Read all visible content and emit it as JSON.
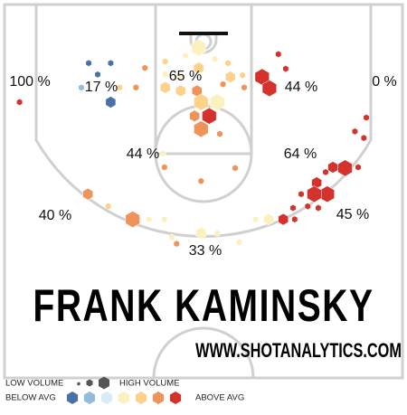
{
  "chart_data": {
    "type": "hexbin",
    "title": "FRANK KAMINSKY",
    "subtitle": "WWW.SHOTANALYTICS.COM",
    "xlim": [
      -25,
      25
    ],
    "ylim": [
      0,
      47
    ],
    "colors": [
      "#4a72a8",
      "#93bcdc",
      "#d9ecf3",
      "#fbf1bf",
      "#fdd28b",
      "#ef935a",
      "#d4322c"
    ],
    "hexes": {
      "x": [
        -22.6,
        -14.1,
        -13.0,
        -11.4,
        -11.4,
        -15.0,
        -10.3,
        -8.3,
        -7.2,
        -4.7,
        -4.7,
        -4.7,
        -2.2,
        -0.6,
        -0.6,
        1.4,
        3.0,
        3.3,
        4.8,
        5.0,
        7.2,
        8.1,
        9.2,
        10.1,
        -3.0,
        -2.8,
        -0.8,
        1.7,
        -0.3,
        0.7,
        -1.1,
        -0.3,
        2.4,
        2.0,
        -5.0,
        -4.8,
        -0.3,
        3.9,
        18.6,
        19.7,
        20.0,
        15.0,
        15.9,
        17.4,
        19.0,
        13.9,
        15.2,
        13.6,
        12.0,
        12.8,
        14.1,
        11.0,
        11.2,
        9.8,
        8.0,
        6.4,
        4.4,
        1.7,
        -0.3,
        -3.9,
        -3.3,
        -14.2,
        -8.7,
        -11.7,
        -6.7,
        -4.8
      ],
      "y": [
        12.0,
        7.2,
        8.6,
        7.2,
        12.0,
        10.2,
        10.2,
        10.2,
        7.8,
        7.0,
        8.6,
        10.2,
        6.3,
        5.3,
        7.8,
        6.7,
        7.2,
        8.9,
        8.7,
        10.2,
        8.9,
        10.3,
        6.1,
        7.9,
        8.8,
        10.6,
        10.6,
        12.0,
        12.0,
        13.7,
        13.7,
        15.3,
        9.8,
        15.9,
        18.3,
        20.0,
        21.7,
        20.1,
        15.6,
        16.4,
        13.9,
        20.6,
        20.0,
        20.1,
        20.0,
        21.9,
        23.3,
        23.3,
        23.3,
        24.8,
        25.0,
        25.0,
        26.4,
        26.4,
        26.4,
        26.4,
        29.2,
        28.1,
        28.1,
        28.6,
        29.4,
        23.3,
        26.4,
        24.8,
        26.4,
        26.4
      ],
      "volume": [
        1,
        1,
        1,
        1,
        2,
        1,
        1,
        1,
        1,
        1,
        1,
        2,
        1,
        3,
        2,
        1,
        1,
        2,
        1,
        1,
        3,
        3,
        1,
        1,
        1,
        2,
        2,
        3,
        3,
        3,
        2,
        3,
        1,
        1,
        1,
        1,
        1,
        1,
        1,
        1,
        1,
        1,
        2,
        3,
        1,
        2,
        3,
        3,
        1,
        1,
        1,
        1,
        1,
        2,
        2,
        1,
        1,
        1,
        2,
        1,
        1,
        2,
        3,
        1,
        1,
        1
      ],
      "efficiency": [
        3,
        -3,
        -3,
        -3,
        -3,
        -2,
        1,
        2,
        2,
        1,
        0,
        1,
        0,
        0,
        1,
        0,
        1,
        1,
        1,
        2,
        3,
        3,
        3,
        3,
        0,
        1,
        2,
        0,
        1,
        3,
        2,
        2,
        2,
        2,
        0,
        2,
        2,
        2,
        3,
        3,
        3,
        3,
        3,
        3,
        3,
        3,
        3,
        3,
        3,
        3,
        3,
        3,
        3,
        3,
        0,
        0,
        0,
        0,
        0,
        0,
        2,
        2,
        2,
        1,
        0,
        0
      ]
    },
    "zones": {
      "values": [
        100,
        17,
        65,
        44,
        0,
        44,
        64,
        40,
        45,
        33
      ],
      "value_labels": [
        "100 %",
        "17 %",
        "65 %",
        "44 %",
        "0 %",
        "44 %",
        "64 %",
        "40 %",
        "45 %",
        "33 %"
      ]
    },
    "legend": {
      "low_volume": "LOW VOLUME",
      "high_volume": "HIGH VOLUME",
      "below_avg": "BELOW AVG",
      "above_avg": "ABOVE AVG"
    }
  }
}
